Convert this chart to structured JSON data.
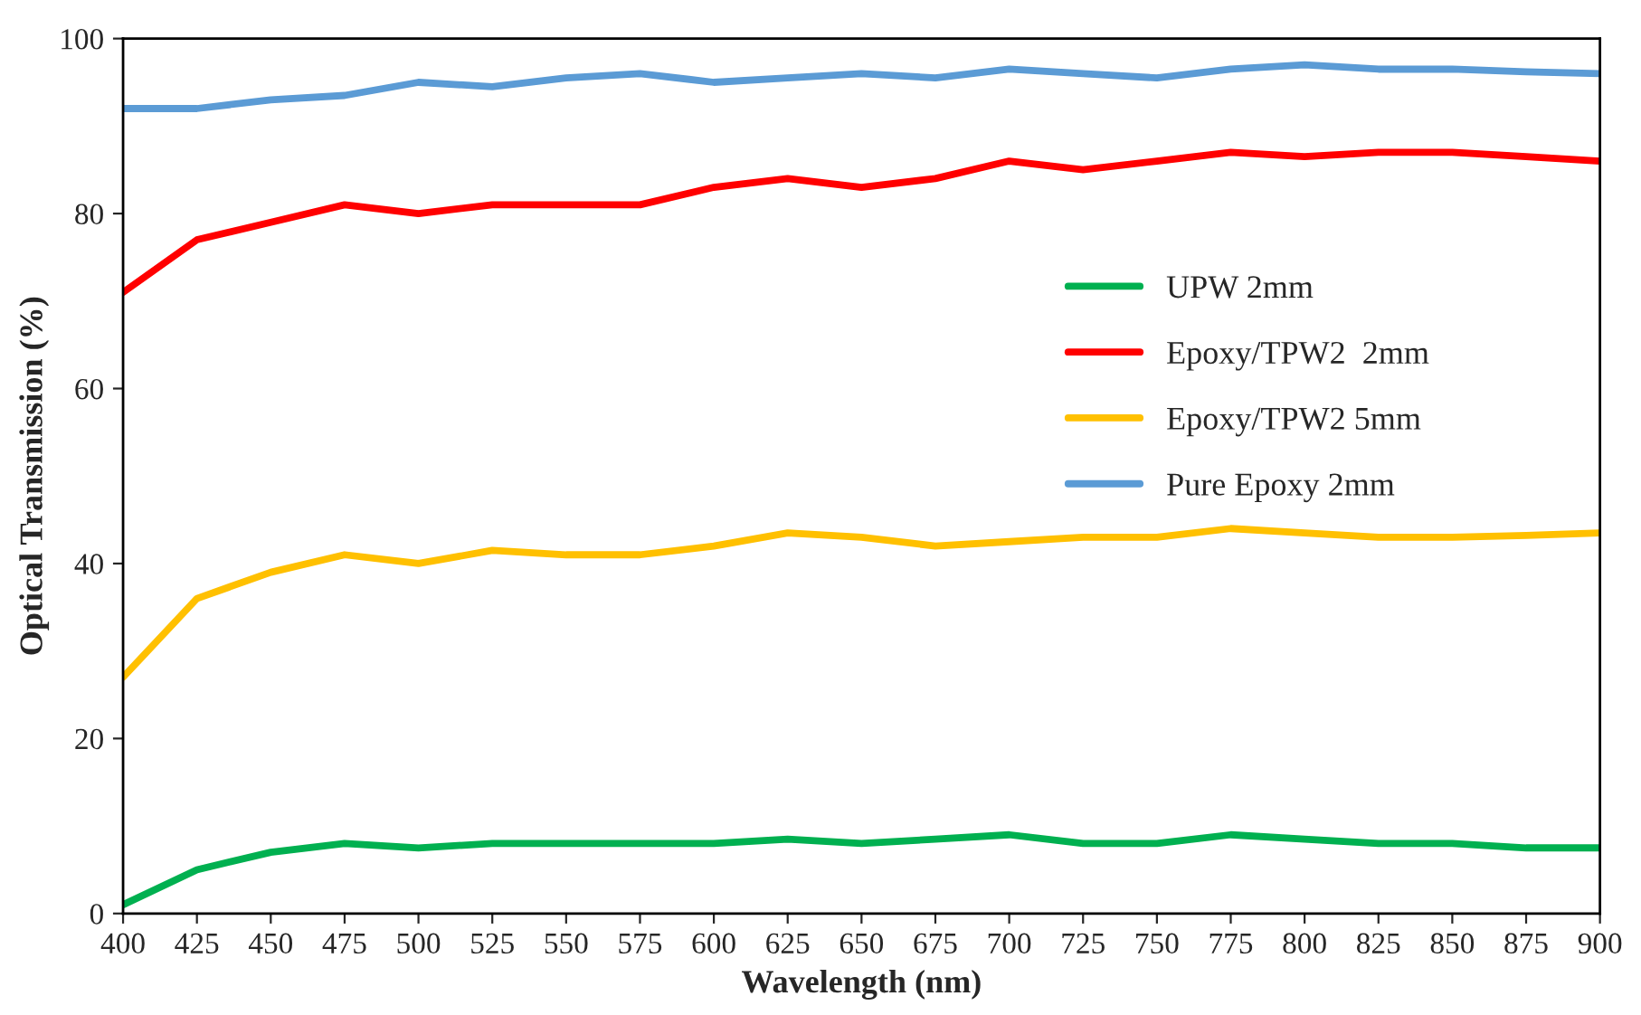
{
  "chart_data": {
    "type": "line",
    "xlabel": "Wavelength (nm)",
    "ylabel": "Optical Transmission (%)",
    "x": [
      400,
      425,
      450,
      475,
      500,
      525,
      550,
      575,
      600,
      625,
      650,
      675,
      700,
      725,
      750,
      775,
      800,
      825,
      850,
      875,
      900
    ],
    "xlim": [
      400,
      900
    ],
    "xticks": [
      400,
      425,
      450,
      475,
      500,
      525,
      550,
      575,
      600,
      625,
      650,
      675,
      700,
      725,
      750,
      775,
      800,
      825,
      850,
      875,
      900
    ],
    "ylim": [
      0,
      100
    ],
    "yticks": [
      0,
      20,
      40,
      60,
      80,
      100
    ],
    "grid": false,
    "legend": "right",
    "line_style": "solid",
    "marker": "none",
    "series": [
      {
        "name": "UPW 2mm",
        "color": "#00b050",
        "values": [
          1,
          5,
          7,
          8,
          7.5,
          8,
          8,
          8,
          8,
          8.5,
          8,
          8.5,
          9,
          8,
          8,
          9,
          8.5,
          8,
          8,
          7.5,
          7.5
        ]
      },
      {
        "name": "Epoxy/TPW2  2mm",
        "color": "#ff0000",
        "values": [
          71,
          77,
          79,
          81,
          80,
          81,
          81,
          81,
          83,
          84,
          83,
          84,
          86,
          85,
          86,
          87,
          86.5,
          87,
          87,
          86.5,
          86
        ]
      },
      {
        "name": "Epoxy/TPW2 5mm",
        "color": "#ffc000",
        "values": [
          27,
          36,
          39,
          41,
          40,
          41.5,
          41,
          41,
          42,
          43.5,
          43,
          42,
          42.5,
          43,
          43,
          44,
          43.5,
          43,
          43,
          43.2,
          43.5
        ]
      },
      {
        "name": "Pure Epoxy 2mm",
        "color": "#5b9bd5",
        "values": [
          92,
          92,
          93,
          93.5,
          95,
          94.5,
          95.5,
          96,
          95,
          95.5,
          96,
          95.5,
          96.5,
          96,
          95.5,
          96.5,
          97,
          96.5,
          96.5,
          96.2,
          96
        ]
      }
    ]
  }
}
